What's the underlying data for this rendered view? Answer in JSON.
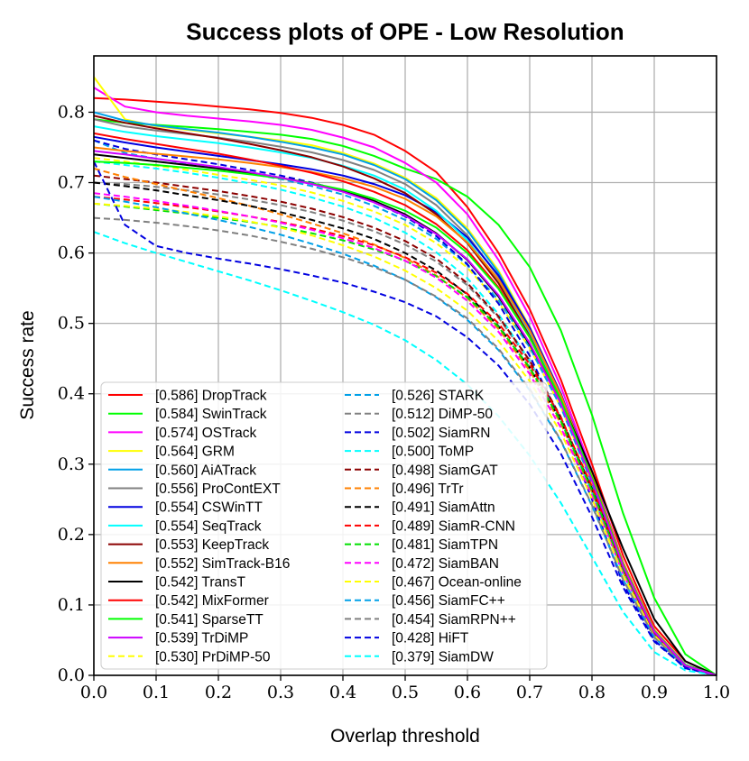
{
  "chart_data": {
    "type": "line",
    "title": "Success plots of OPE - Low Resolution",
    "xlabel": "Overlap threshold",
    "ylabel": "Success rate",
    "xlim": [
      0.0,
      1.0
    ],
    "ylim": [
      0.0,
      0.88
    ],
    "xticks": [
      "0.0",
      "0.1",
      "0.2",
      "0.3",
      "0.4",
      "0.5",
      "0.6",
      "0.7",
      "0.8",
      "0.9",
      "1.0"
    ],
    "yticks": [
      "0.0",
      "0.1",
      "0.2",
      "0.3",
      "0.4",
      "0.5",
      "0.6",
      "0.7",
      "0.8"
    ],
    "grid": true,
    "legend_position": "lower-left",
    "x": [
      0.0,
      0.05,
      0.1,
      0.15,
      0.2,
      0.25,
      0.3,
      0.35,
      0.4,
      0.45,
      0.5,
      0.55,
      0.6,
      0.65,
      0.7,
      0.75,
      0.8,
      0.85,
      0.9,
      0.95,
      1.0
    ],
    "series": [
      {
        "name": "[0.586] DropTrack",
        "color": "#ff0000",
        "dash": false,
        "values": [
          0.82,
          0.818,
          0.815,
          0.812,
          0.808,
          0.804,
          0.799,
          0.792,
          0.782,
          0.768,
          0.745,
          0.715,
          0.665,
          0.6,
          0.52,
          0.42,
          0.3,
          0.17,
          0.07,
          0.02,
          0.0
        ]
      },
      {
        "name": "[0.584] SwinTrack",
        "color": "#00ff00",
        "dash": false,
        "values": [
          0.79,
          0.785,
          0.782,
          0.779,
          0.776,
          0.772,
          0.768,
          0.762,
          0.752,
          0.738,
          0.72,
          0.705,
          0.68,
          0.64,
          0.58,
          0.49,
          0.37,
          0.23,
          0.11,
          0.03,
          0.0
        ]
      },
      {
        "name": "[0.574] OSTrack",
        "color": "#ff00ff",
        "dash": false,
        "values": [
          0.835,
          0.808,
          0.8,
          0.795,
          0.791,
          0.787,
          0.782,
          0.775,
          0.764,
          0.75,
          0.728,
          0.7,
          0.655,
          0.59,
          0.51,
          0.41,
          0.29,
          0.16,
          0.065,
          0.015,
          0.0
        ]
      },
      {
        "name": "[0.564] GRM",
        "color": "#ffff00",
        "dash": false,
        "values": [
          0.85,
          0.79,
          0.78,
          0.775,
          0.77,
          0.765,
          0.76,
          0.753,
          0.742,
          0.727,
          0.707,
          0.678,
          0.635,
          0.575,
          0.495,
          0.4,
          0.285,
          0.16,
          0.065,
          0.015,
          0.0
        ]
      },
      {
        "name": "[0.560] AiATrack",
        "color": "#00a0e8",
        "dash": false,
        "values": [
          0.8,
          0.788,
          0.781,
          0.776,
          0.771,
          0.765,
          0.758,
          0.75,
          0.74,
          0.725,
          0.705,
          0.675,
          0.632,
          0.572,
          0.492,
          0.397,
          0.282,
          0.158,
          0.063,
          0.015,
          0.0
        ]
      },
      {
        "name": "[0.556] ProContEXT",
        "color": "#808080",
        "dash": false,
        "values": [
          0.79,
          0.78,
          0.774,
          0.769,
          0.764,
          0.758,
          0.751,
          0.743,
          0.732,
          0.718,
          0.698,
          0.668,
          0.625,
          0.566,
          0.488,
          0.393,
          0.279,
          0.156,
          0.062,
          0.014,
          0.0
        ]
      },
      {
        "name": "[0.554] CSWinTT",
        "color": "#0000e0",
        "dash": false,
        "values": [
          0.765,
          0.757,
          0.75,
          0.744,
          0.738,
          0.732,
          0.726,
          0.719,
          0.71,
          0.698,
          0.682,
          0.658,
          0.622,
          0.568,
          0.494,
          0.4,
          0.286,
          0.16,
          0.064,
          0.015,
          0.0
        ]
      },
      {
        "name": "[0.554] SeqTrack",
        "color": "#00ffff",
        "dash": false,
        "values": [
          0.78,
          0.772,
          0.766,
          0.761,
          0.756,
          0.75,
          0.743,
          0.735,
          0.724,
          0.71,
          0.69,
          0.66,
          0.618,
          0.56,
          0.484,
          0.391,
          0.278,
          0.155,
          0.062,
          0.014,
          0.0
        ]
      },
      {
        "name": "[0.553] KeepTrack",
        "color": "#8b0000",
        "dash": false,
        "values": [
          0.795,
          0.785,
          0.777,
          0.77,
          0.763,
          0.755,
          0.746,
          0.736,
          0.723,
          0.706,
          0.685,
          0.655,
          0.614,
          0.557,
          0.482,
          0.39,
          0.277,
          0.154,
          0.061,
          0.014,
          0.0
        ]
      },
      {
        "name": "[0.552] SimTrack-B16",
        "color": "#ff8000",
        "dash": false,
        "values": [
          0.75,
          0.745,
          0.741,
          0.737,
          0.733,
          0.728,
          0.722,
          0.715,
          0.706,
          0.694,
          0.677,
          0.652,
          0.615,
          0.562,
          0.49,
          0.398,
          0.285,
          0.16,
          0.064,
          0.015,
          0.0
        ]
      },
      {
        "name": "[0.542] TransT",
        "color": "#000000",
        "dash": false,
        "values": [
          0.74,
          0.735,
          0.73,
          0.725,
          0.72,
          0.714,
          0.707,
          0.699,
          0.688,
          0.674,
          0.655,
          0.628,
          0.59,
          0.538,
          0.47,
          0.39,
          0.29,
          0.18,
          0.08,
          0.02,
          0.0
        ]
      },
      {
        "name": "[0.542] MixFormer",
        "color": "#ff0000",
        "dash": false,
        "values": [
          0.77,
          0.762,
          0.755,
          0.748,
          0.741,
          0.733,
          0.724,
          0.714,
          0.702,
          0.687,
          0.668,
          0.641,
          0.604,
          0.551,
          0.48,
          0.39,
          0.278,
          0.155,
          0.062,
          0.014,
          0.0
        ]
      },
      {
        "name": "[0.541] SparseTT",
        "color": "#00ff00",
        "dash": false,
        "values": [
          0.73,
          0.728,
          0.725,
          0.721,
          0.717,
          0.712,
          0.706,
          0.699,
          0.69,
          0.677,
          0.66,
          0.636,
          0.6,
          0.549,
          0.48,
          0.392,
          0.281,
          0.157,
          0.063,
          0.015,
          0.0
        ]
      },
      {
        "name": "[0.539] TrDiMP",
        "color": "#cc00ff",
        "dash": false,
        "values": [
          0.745,
          0.74,
          0.734,
          0.728,
          0.722,
          0.715,
          0.707,
          0.698,
          0.687,
          0.672,
          0.653,
          0.627,
          0.591,
          0.54,
          0.472,
          0.386,
          0.277,
          0.155,
          0.062,
          0.014,
          0.0
        ]
      },
      {
        "name": "[0.530] PrDiMP-50",
        "color": "#ffff00",
        "dash": true,
        "values": [
          0.735,
          0.73,
          0.724,
          0.718,
          0.711,
          0.704,
          0.696,
          0.686,
          0.674,
          0.659,
          0.64,
          0.614,
          0.579,
          0.53,
          0.465,
          0.381,
          0.274,
          0.153,
          0.061,
          0.014,
          0.0
        ]
      },
      {
        "name": "[0.526] STARK",
        "color": "#00a0e8",
        "dash": true,
        "values": [
          0.76,
          0.742,
          0.734,
          0.727,
          0.72,
          0.713,
          0.705,
          0.695,
          0.683,
          0.667,
          0.647,
          0.62,
          0.583,
          0.533,
          0.466,
          0.381,
          0.273,
          0.152,
          0.06,
          0.014,
          0.0
        ]
      },
      {
        "name": "[0.512] DiMP-50",
        "color": "#808080",
        "dash": true,
        "values": [
          0.7,
          0.698,
          0.694,
          0.689,
          0.683,
          0.676,
          0.668,
          0.658,
          0.646,
          0.631,
          0.612,
          0.588,
          0.554,
          0.508,
          0.446,
          0.366,
          0.263,
          0.146,
          0.058,
          0.013,
          0.0
        ]
      },
      {
        "name": "[0.502] SiamRN",
        "color": "#0000e0",
        "dash": true,
        "values": [
          0.76,
          0.748,
          0.74,
          0.733,
          0.726,
          0.718,
          0.71,
          0.7,
          0.688,
          0.672,
          0.652,
          0.624,
          0.584,
          0.528,
          0.454,
          0.362,
          0.25,
          0.13,
          0.05,
          0.01,
          0.0
        ]
      },
      {
        "name": "[0.500] ToMP",
        "color": "#00ffff",
        "dash": true,
        "values": [
          0.73,
          0.725,
          0.72,
          0.714,
          0.707,
          0.699,
          0.69,
          0.679,
          0.666,
          0.65,
          0.629,
          0.601,
          0.564,
          0.513,
          0.447,
          0.364,
          0.26,
          0.144,
          0.057,
          0.013,
          0.0
        ]
      },
      {
        "name": "[0.498] SiamGAT",
        "color": "#8b0000",
        "dash": true,
        "values": [
          0.71,
          0.705,
          0.7,
          0.694,
          0.688,
          0.681,
          0.673,
          0.663,
          0.651,
          0.636,
          0.617,
          0.592,
          0.557,
          0.51,
          0.447,
          0.367,
          0.265,
          0.149,
          0.059,
          0.014,
          0.0
        ]
      },
      {
        "name": "[0.496] TrTr",
        "color": "#ff8000",
        "dash": true,
        "values": [
          0.72,
          0.708,
          0.698,
          0.688,
          0.678,
          0.667,
          0.655,
          0.642,
          0.628,
          0.612,
          0.593,
          0.568,
          0.536,
          0.492,
          0.433,
          0.358,
          0.26,
          0.148,
          0.06,
          0.014,
          0.0
        ]
      },
      {
        "name": "[0.491] SiamAttn",
        "color": "#000000",
        "dash": true,
        "values": [
          0.7,
          0.695,
          0.689,
          0.682,
          0.675,
          0.667,
          0.658,
          0.647,
          0.635,
          0.62,
          0.6,
          0.575,
          0.541,
          0.496,
          0.437,
          0.362,
          0.265,
          0.152,
          0.062,
          0.015,
          0.0
        ]
      },
      {
        "name": "[0.489] SiamR-CNN",
        "color": "#ff0000",
        "dash": true,
        "values": [
          0.68,
          0.676,
          0.671,
          0.665,
          0.659,
          0.652,
          0.644,
          0.635,
          0.624,
          0.611,
          0.594,
          0.572,
          0.542,
          0.5,
          0.442,
          0.366,
          0.268,
          0.153,
          0.062,
          0.015,
          0.0
        ]
      },
      {
        "name": "[0.481] SiamTPN",
        "color": "#00e000",
        "dash": true,
        "values": [
          0.67,
          0.666,
          0.661,
          0.656,
          0.65,
          0.644,
          0.637,
          0.628,
          0.618,
          0.605,
          0.589,
          0.567,
          0.537,
          0.495,
          0.437,
          0.361,
          0.263,
          0.149,
          0.06,
          0.014,
          0.0
        ]
      },
      {
        "name": "[0.472] SiamBAN",
        "color": "#ff00ff",
        "dash": true,
        "values": [
          0.685,
          0.68,
          0.674,
          0.667,
          0.66,
          0.652,
          0.643,
          0.633,
          0.621,
          0.607,
          0.589,
          0.565,
          0.532,
          0.488,
          0.428,
          0.352,
          0.255,
          0.144,
          0.057,
          0.013,
          0.0
        ]
      },
      {
        "name": "[0.467] Ocean-online",
        "color": "#ffff00",
        "dash": true,
        "values": [
          0.67,
          0.667,
          0.663,
          0.658,
          0.652,
          0.645,
          0.636,
          0.625,
          0.611,
          0.595,
          0.575,
          0.55,
          0.518,
          0.475,
          0.418,
          0.345,
          0.251,
          0.142,
          0.057,
          0.013,
          0.0
        ]
      },
      {
        "name": "[0.456] SiamFC++",
        "color": "#00a0e8",
        "dash": true,
        "values": [
          0.68,
          0.673,
          0.665,
          0.656,
          0.647,
          0.637,
          0.626,
          0.613,
          0.599,
          0.582,
          0.562,
          0.537,
          0.505,
          0.462,
          0.405,
          0.333,
          0.241,
          0.136,
          0.054,
          0.012,
          0.0
        ]
      },
      {
        "name": "[0.454] SiamRPN++",
        "color": "#808080",
        "dash": true,
        "values": [
          0.65,
          0.647,
          0.643,
          0.638,
          0.632,
          0.625,
          0.616,
          0.606,
          0.594,
          0.58,
          0.562,
          0.538,
          0.507,
          0.464,
          0.407,
          0.334,
          0.242,
          0.136,
          0.054,
          0.012,
          0.0
        ]
      },
      {
        "name": "[0.428] HiFT",
        "color": "#0000e0",
        "dash": true,
        "values": [
          0.73,
          0.64,
          0.61,
          0.6,
          0.592,
          0.585,
          0.577,
          0.568,
          0.558,
          0.545,
          0.53,
          0.51,
          0.48,
          0.44,
          0.385,
          0.315,
          0.225,
          0.125,
          0.048,
          0.011,
          0.0
        ]
      },
      {
        "name": "[0.379] SiamDW",
        "color": "#00ffff",
        "dash": true,
        "values": [
          0.63,
          0.614,
          0.6,
          0.587,
          0.574,
          0.561,
          0.547,
          0.532,
          0.516,
          0.498,
          0.476,
          0.448,
          0.413,
          0.368,
          0.312,
          0.245,
          0.168,
          0.09,
          0.033,
          0.007,
          0.0
        ]
      }
    ]
  }
}
